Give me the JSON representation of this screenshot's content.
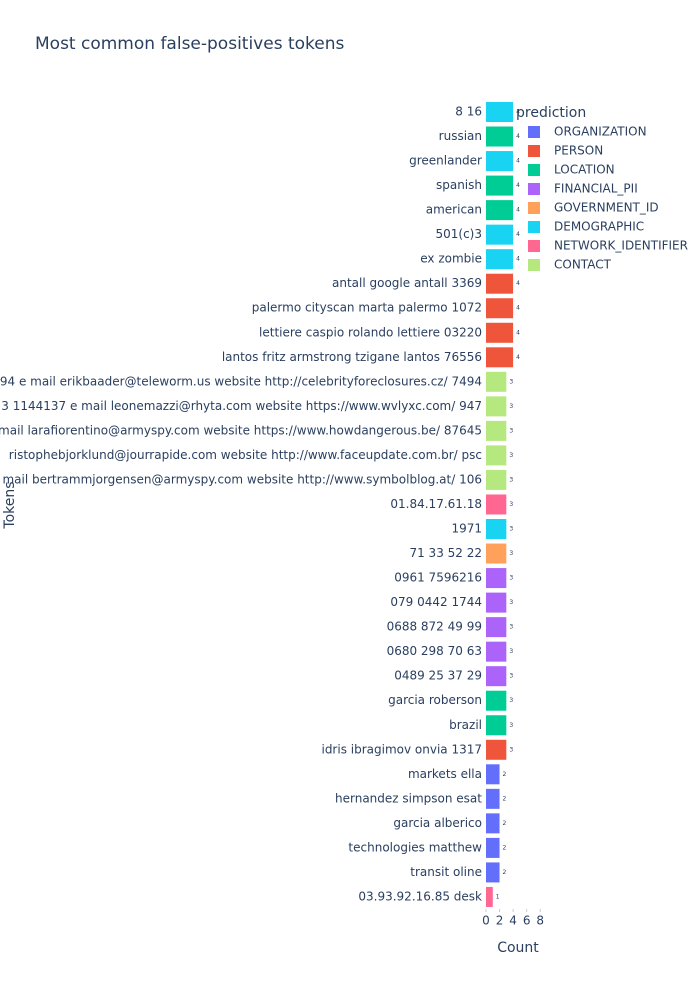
{
  "chart_data": {
    "type": "bar",
    "orientation": "horizontal",
    "title": "Most common false-positives tokens",
    "x_label": "Count",
    "y_label": "Tokens",
    "legend_title": "prediction",
    "categories": [
      "8 16",
      "russian",
      "greenlander",
      "spanish",
      "american",
      "501(c)3",
      "ex zombie",
      "antall google antall 3369",
      "palermo cityscan marta palermo 1072",
      "lettiere caspio rolando lettiere 03220",
      "lantos fritz armstrong tzigane lantos 76556",
      "94 e mail erikbaader@teleworm.us website http://celebrityforeclosures.cz/ 7494",
      "3 1144137 e mail leonemazzi@rhyta.com website https://www.wvlyxc.com/ 947",
      "mail larafiorentino@armyspy.com website https://www.howdangerous.be/ 87645",
      "ristophebjorklund@jourrapide.com website http://www.faceupdate.com.br/ psc",
      "mail bertrammjorgensen@armyspy.com website http://www.symbolblog.at/ 106",
      "01.84.17.61.18",
      "1971",
      "71 33 52 22",
      "0961 7596216",
      "079 0442 1744",
      "0688 872 49 99",
      "0680 298 70 63",
      "0489 25 37 29",
      "garcia roberson",
      "brazil",
      "idris ibragimov onvia 1317",
      "markets ella",
      "hernandez simpson esat",
      "garcia alberico",
      "technologies matthew",
      "transit oline",
      "03.93.92.16.85 desk"
    ],
    "series": [
      {
        "name": "ORGANIZATION",
        "color": "#636efa",
        "values": [
          null,
          null,
          null,
          null,
          null,
          null,
          null,
          null,
          null,
          null,
          null,
          null,
          null,
          null,
          null,
          null,
          null,
          null,
          null,
          null,
          null,
          null,
          null,
          null,
          null,
          null,
          null,
          2,
          2,
          2,
          2,
          2,
          null
        ]
      },
      {
        "name": "PERSON",
        "color": "#ef553b",
        "values": [
          null,
          null,
          null,
          null,
          null,
          null,
          null,
          4,
          4,
          4,
          4,
          null,
          null,
          null,
          null,
          null,
          null,
          null,
          null,
          null,
          null,
          null,
          null,
          null,
          null,
          null,
          3,
          null,
          null,
          null,
          null,
          null,
          null
        ]
      },
      {
        "name": "LOCATION",
        "color": "#00cc96",
        "values": [
          null,
          4,
          null,
          4,
          4,
          null,
          null,
          null,
          null,
          null,
          null,
          null,
          null,
          null,
          null,
          null,
          null,
          null,
          null,
          null,
          null,
          null,
          null,
          null,
          3,
          3,
          null,
          null,
          null,
          null,
          null,
          null,
          null
        ]
      },
      {
        "name": "FINANCIAL_PII",
        "color": "#ab63fa",
        "values": [
          null,
          null,
          null,
          null,
          null,
          null,
          null,
          null,
          null,
          null,
          null,
          null,
          null,
          null,
          null,
          null,
          null,
          null,
          null,
          3,
          3,
          3,
          3,
          3,
          null,
          null,
          null,
          null,
          null,
          null,
          null,
          null,
          null
        ]
      },
      {
        "name": "GOVERNMENT_ID",
        "color": "#ffa15a",
        "values": [
          null,
          null,
          null,
          null,
          null,
          null,
          null,
          null,
          null,
          null,
          null,
          null,
          null,
          null,
          null,
          null,
          null,
          null,
          3,
          null,
          null,
          null,
          null,
          null,
          null,
          null,
          null,
          null,
          null,
          null,
          null,
          null,
          null
        ]
      },
      {
        "name": "DEMOGRAPHIC",
        "color": "#19d3f3",
        "values": [
          4,
          null,
          4,
          null,
          null,
          4,
          4,
          null,
          null,
          null,
          null,
          null,
          null,
          null,
          null,
          null,
          null,
          3,
          null,
          null,
          null,
          null,
          null,
          null,
          null,
          null,
          null,
          null,
          null,
          null,
          null,
          null,
          null
        ]
      },
      {
        "name": "NETWORK_IDENTIFIER",
        "color": "#ff6692",
        "values": [
          null,
          null,
          null,
          null,
          null,
          null,
          null,
          null,
          null,
          null,
          null,
          null,
          null,
          null,
          null,
          null,
          3,
          null,
          null,
          null,
          null,
          null,
          null,
          null,
          null,
          null,
          null,
          null,
          null,
          null,
          null,
          null,
          1
        ]
      },
      {
        "name": "CONTACT",
        "color": "#b6e880",
        "values": [
          null,
          null,
          null,
          null,
          null,
          null,
          null,
          null,
          null,
          null,
          null,
          3,
          3,
          3,
          3,
          3,
          null,
          null,
          null,
          null,
          null,
          null,
          null,
          null,
          null,
          null,
          null,
          null,
          null,
          null,
          null,
          null,
          null
        ]
      }
    ],
    "xlim": [
      0,
      9.3
    ],
    "xticks": [
      0,
      2,
      4,
      6,
      8
    ]
  }
}
